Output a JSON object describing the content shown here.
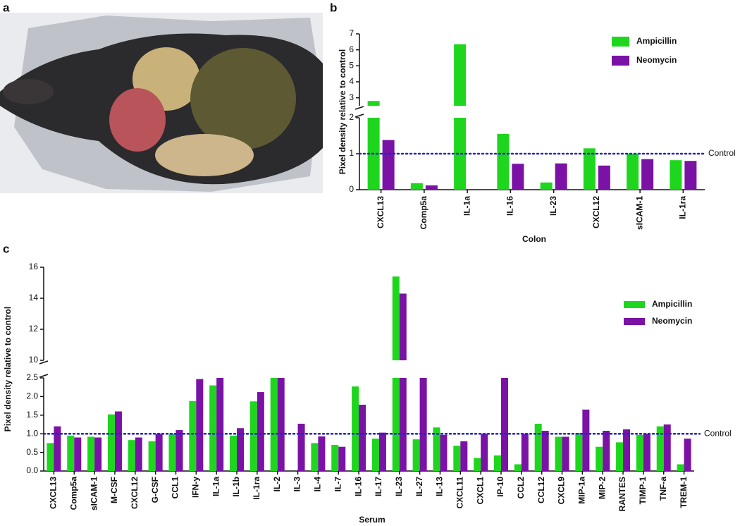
{
  "figure": {
    "panel_labels": [
      "a",
      "b",
      "c"
    ]
  },
  "chart_data": [
    {
      "type": "bar",
      "x_title": "Colon",
      "y_title": "Pixel density relative to control",
      "categories": [
        "CXCL13",
        "Comp5a",
        "IL-1a",
        "IL-16",
        "IL-23",
        "CXCL12",
        "sICAM-1",
        "IL-1ra"
      ],
      "series": [
        {
          "name": "Ampicillin",
          "color": "#1fd61f",
          "values": [
            2.8,
            0.18,
            6.35,
            1.55,
            0.2,
            1.15,
            1.0,
            0.82
          ]
        },
        {
          "name": "Neomycin",
          "color": "#7a12a6",
          "values": [
            1.38,
            0.12,
            null,
            0.72,
            0.73,
            0.67,
            0.85,
            0.8
          ]
        }
      ],
      "segments": [
        {
          "ylim": [
            0,
            2
          ],
          "yticks": [
            0,
            1,
            2
          ]
        },
        {
          "ylim": [
            2.5,
            7
          ],
          "yticks": [
            3,
            4,
            5,
            6,
            7
          ]
        }
      ],
      "reference_line": {
        "value": 1,
        "label": "Control",
        "color": "#2222cc"
      },
      "legend": "top-right"
    },
    {
      "type": "bar",
      "x_title": "Serum",
      "y_title": "Pixel density relative to control",
      "categories": [
        "CXCL13",
        "Comp5a",
        "sICAM-1",
        "M-CSF",
        "CXCL12",
        "G-CSF",
        "CCL1",
        "IFN-y",
        "IL-1a",
        "IL-1b",
        "IL-1ra",
        "IL-2",
        "IL-3",
        "IL-4",
        "IL-7",
        "IL-16",
        "IL-17",
        "IL-23",
        "IL-27",
        "IL-13",
        "CXCL11",
        "CXCL1",
        "IP-10",
        "CCL2",
        "CCL12",
        "CXCL9",
        "MIP-1a",
        "MIP-2",
        "RANTES",
        "TIMP-1",
        "TNF-a",
        "TREM-1"
      ],
      "series": [
        {
          "name": "Ampicillin",
          "color": "#1fd61f",
          "values": [
            0.75,
            0.95,
            0.92,
            1.52,
            0.83,
            0.8,
            1.0,
            1.88,
            2.3,
            0.95,
            1.87,
            3,
            null,
            0.75,
            0.7,
            2.27,
            0.87,
            15.4,
            0.85,
            1.17,
            0.68,
            0.35,
            0.42,
            0.18,
            1.27,
            0.92,
            1.02,
            0.65,
            0.77,
            0.97,
            1.2,
            0.18
          ]
        },
        {
          "name": "Neomycin",
          "color": "#7a12a6",
          "values": [
            1.2,
            0.9,
            0.9,
            1.6,
            0.9,
            1.0,
            1.1,
            2.47,
            2.5,
            1.15,
            2.12,
            3,
            1.27,
            0.93,
            0.65,
            1.78,
            1.03,
            14.3,
            3,
            0.97,
            0.8,
            1.0,
            3,
            1.0,
            1.08,
            0.92,
            1.65,
            1.08,
            1.12,
            1.0,
            1.25,
            0.87
          ]
        }
      ],
      "segments": [
        {
          "ylim": [
            0,
            2.5
          ],
          "yticks": [
            {
              "value": 0,
              "label": "0.0"
            },
            0.5,
            {
              "value": 1,
              "label": "1.0"
            },
            1.5,
            {
              "value": 2,
              "label": "2.0"
            },
            2.5
          ]
        },
        {
          "ylim": [
            10,
            16
          ],
          "yticks": [
            10,
            12,
            14,
            16
          ]
        }
      ],
      "reference_line": {
        "value": 1,
        "label": "Control",
        "color": "#2222cc"
      },
      "legend": "top-right"
    }
  ]
}
